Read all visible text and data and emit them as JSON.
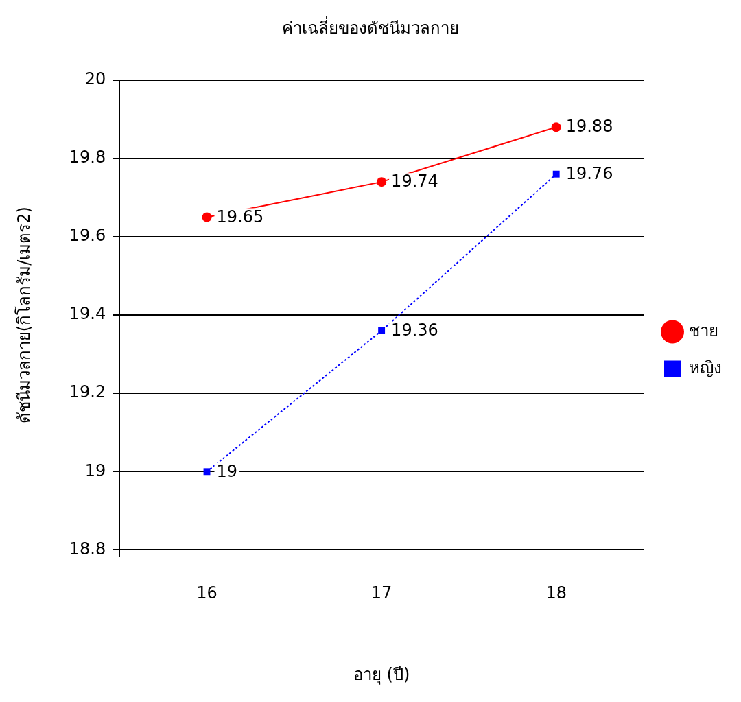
{
  "chart_data": {
    "type": "line",
    "title": "ค่าเฉลี่ยของดัชนีมวลกาย",
    "xlabel": "อายุ (ปี)",
    "ylabel": "ดัชนีมวลกาย(กิโลกรัม/เมตร2)",
    "categories": [
      "16",
      "17",
      "18"
    ],
    "series": [
      {
        "name": "ชาย",
        "color": "#ff0000",
        "values": [
          19.65,
          19.74,
          19.88
        ],
        "marker": "circle",
        "line_style": "solid"
      },
      {
        "name": "หญิง",
        "color": "#0000ff",
        "values": [
          19,
          19.36,
          19.76
        ],
        "marker": "square",
        "line_style": "dotted"
      }
    ],
    "ylim": [
      18.8,
      20
    ],
    "yticks": [
      18.8,
      19,
      19.2,
      19.4,
      19.6,
      19.8,
      20
    ],
    "grid": "y",
    "legend": "right",
    "data_labels": true
  }
}
